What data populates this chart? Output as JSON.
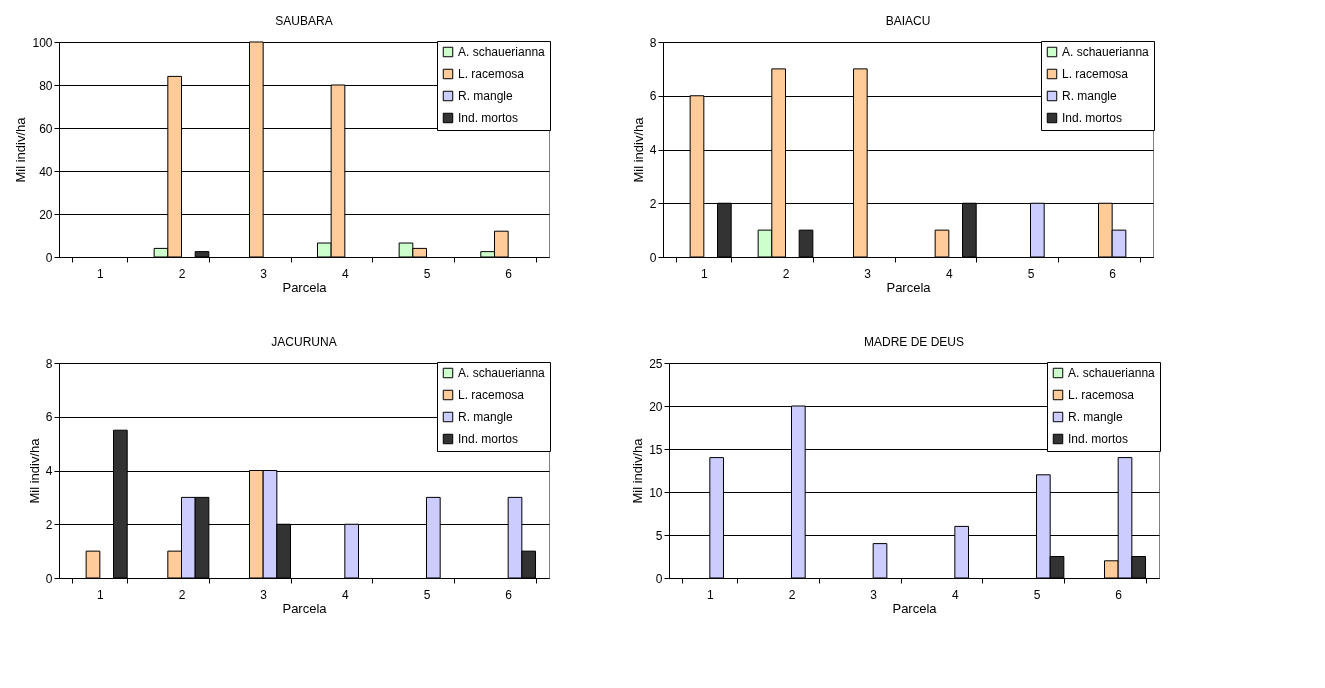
{
  "chart_data": [
    {
      "type": "bar",
      "title": "SAUBARA",
      "xlabel": "Parcela",
      "ylabel": "Mil indiv/ha",
      "categories": [
        "1",
        "2",
        "3",
        "4",
        "5",
        "6"
      ],
      "ylim": [
        0,
        100
      ],
      "yticks": [
        0,
        20,
        40,
        60,
        80,
        100
      ],
      "grid": "y",
      "legend": "top right",
      "series": [
        {
          "name": "A. schauerianna",
          "color": "#ccffcc",
          "values": [
            null,
            4,
            null,
            6.5,
            6.5,
            2.5
          ]
        },
        {
          "name": "L. racemosa",
          "color": "#ffcc99",
          "values": [
            null,
            84,
            100,
            80,
            4,
            12
          ]
        },
        {
          "name": "R. mangle",
          "color": "#ccccff",
          "values": [
            null,
            null,
            null,
            null,
            null,
            null
          ]
        },
        {
          "name": "Ind. mortos",
          "color": "#333333",
          "values": [
            null,
            2.5,
            null,
            null,
            null,
            null
          ]
        }
      ]
    },
    {
      "type": "bar",
      "title": "BAIACU",
      "xlabel": "Parcela",
      "ylabel": "Mil indiv/ha",
      "categories": [
        "1",
        "2",
        "3",
        "4",
        "5",
        "6"
      ],
      "ylim": [
        0,
        8
      ],
      "yticks": [
        0,
        2,
        4,
        6,
        8
      ],
      "grid": "y",
      "legend": "top right",
      "series": [
        {
          "name": "A. schauerianna",
          "color": "#ccffcc",
          "values": [
            null,
            1,
            null,
            null,
            null,
            null
          ]
        },
        {
          "name": "L. racemosa",
          "color": "#ffcc99",
          "values": [
            6,
            7,
            7,
            1,
            null,
            2
          ]
        },
        {
          "name": "R. mangle",
          "color": "#ccccff",
          "values": [
            null,
            null,
            null,
            null,
            2,
            1
          ]
        },
        {
          "name": "Ind. mortos",
          "color": "#333333",
          "values": [
            2,
            1,
            null,
            2,
            null,
            null
          ]
        }
      ]
    },
    {
      "type": "bar",
      "title": "JACURUNA",
      "xlabel": "Parcela",
      "ylabel": "Mil indiv/ha",
      "categories": [
        "1",
        "2",
        "3",
        "4",
        "5",
        "6"
      ],
      "ylim": [
        0,
        8
      ],
      "yticks": [
        0,
        2,
        4,
        6,
        8
      ],
      "grid": "y",
      "legend": "top right",
      "series": [
        {
          "name": "A. schauerianna",
          "color": "#ccffcc",
          "values": [
            null,
            null,
            null,
            null,
            null,
            null
          ]
        },
        {
          "name": "L. racemosa",
          "color": "#ffcc99",
          "values": [
            1,
            1,
            4,
            null,
            null,
            null
          ]
        },
        {
          "name": "R. mangle",
          "color": "#ccccff",
          "values": [
            null,
            3,
            4,
            2,
            3,
            3
          ]
        },
        {
          "name": "Ind. mortos",
          "color": "#333333",
          "values": [
            5.5,
            3,
            2,
            null,
            null,
            1
          ]
        }
      ]
    },
    {
      "type": "bar",
      "title": "MADRE DE DEUS",
      "xlabel": "Parcela",
      "ylabel": "Mil indiv/ha",
      "categories": [
        "1",
        "2",
        "3",
        "4",
        "5",
        "6"
      ],
      "ylim": [
        0,
        25
      ],
      "yticks": [
        0,
        5,
        10,
        15,
        20,
        25
      ],
      "grid": "y",
      "legend": "top right",
      "series": [
        {
          "name": "A. schauerianna",
          "color": "#ccffcc",
          "values": [
            null,
            null,
            null,
            null,
            null,
            null
          ]
        },
        {
          "name": "L. racemosa",
          "color": "#ffcc99",
          "values": [
            null,
            null,
            null,
            null,
            null,
            2
          ]
        },
        {
          "name": "R. mangle",
          "color": "#ccccff",
          "values": [
            14,
            20,
            4,
            6,
            12,
            14
          ]
        },
        {
          "name": "Ind. mortos",
          "color": "#333333",
          "values": [
            null,
            null,
            null,
            null,
            2.5,
            2.5
          ]
        }
      ]
    }
  ]
}
